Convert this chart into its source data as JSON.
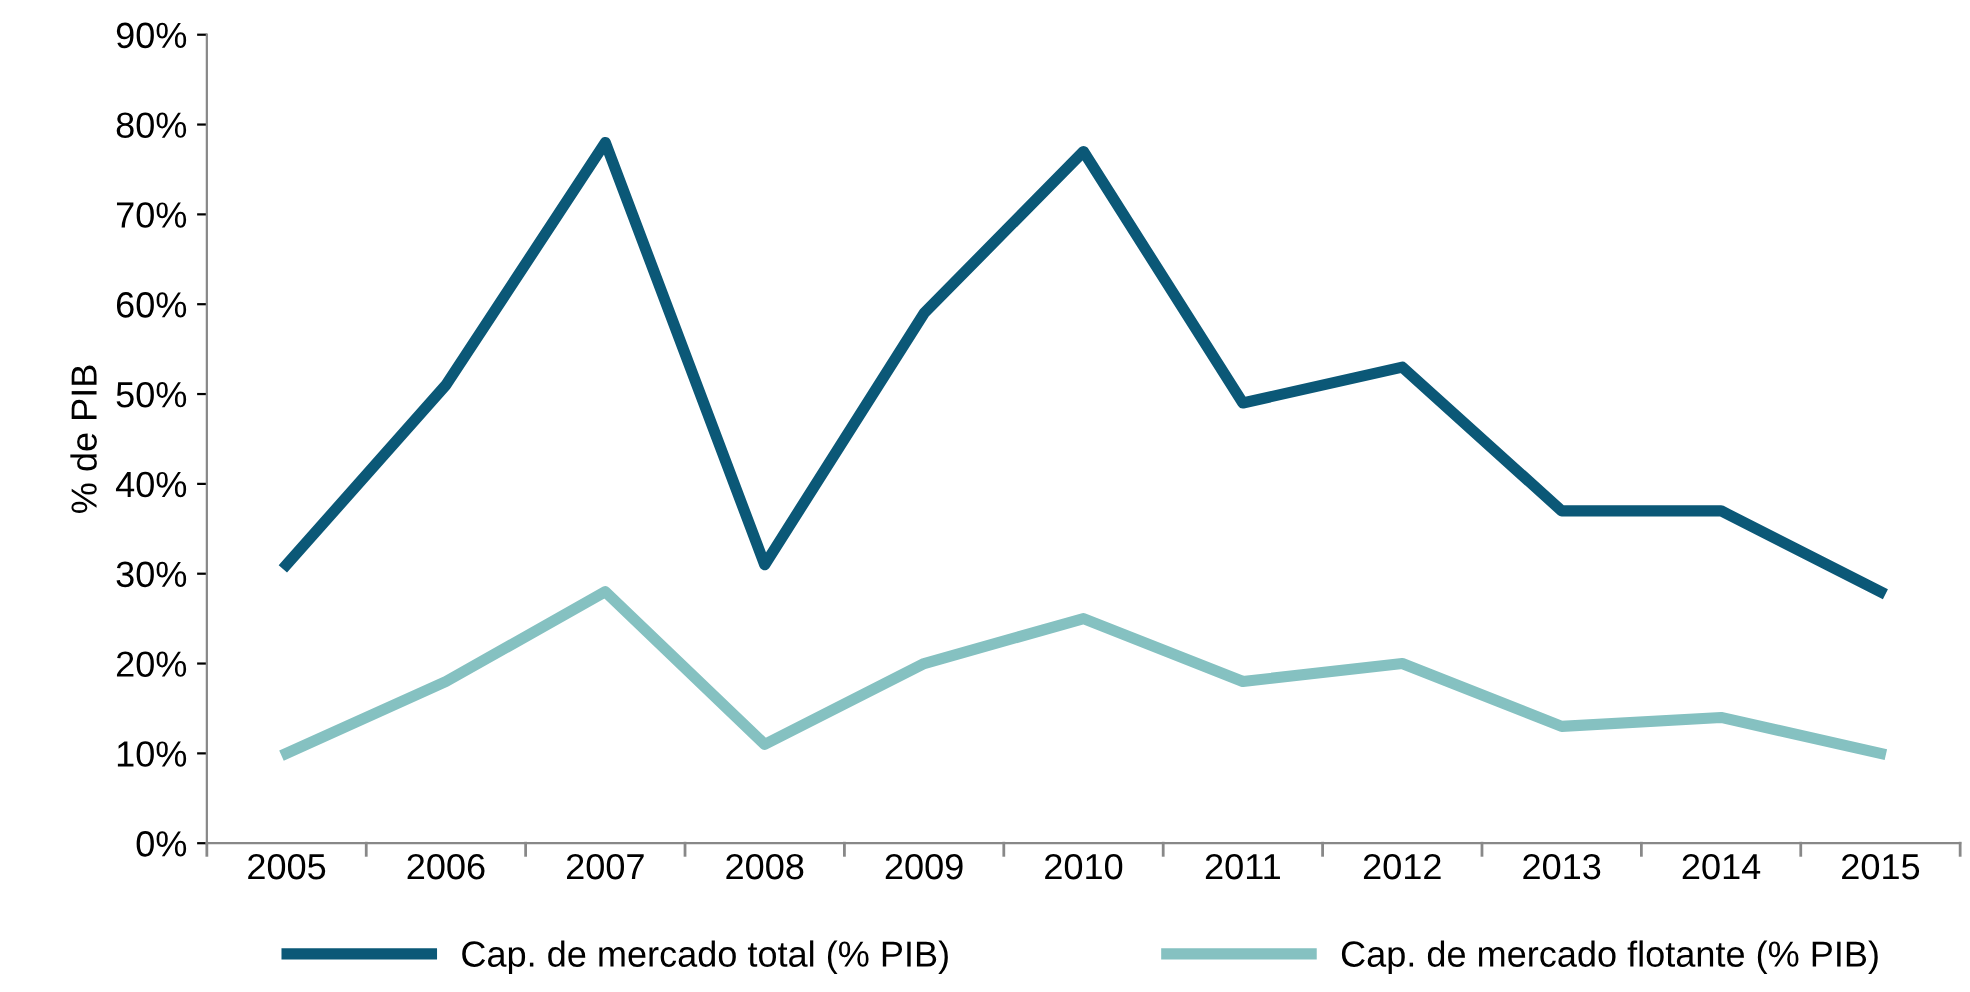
{
  "chart_data": {
    "type": "line",
    "ylabel": "% de PIB",
    "categories": [
      "2005",
      "2006",
      "2007",
      "2008",
      "2009",
      "2010",
      "2011",
      "2012",
      "2013",
      "2014",
      "2015"
    ],
    "series": [
      {
        "name": "Cap. de mercado total (% PIB)",
        "color": "#0b5877",
        "values": [
          31,
          51,
          78,
          31,
          59,
          77,
          49,
          53,
          37,
          37,
          28
        ]
      },
      {
        "name": "Cap. de mercado flotante (% PIB)",
        "color": "#85c1c1",
        "values": [
          10,
          18,
          28,
          11,
          20,
          25,
          18,
          20,
          13,
          14,
          10
        ]
      }
    ],
    "ylim": [
      0,
      90
    ],
    "yticks": [
      {
        "value": 0,
        "label": "0%"
      },
      {
        "value": 10,
        "label": "10%"
      },
      {
        "value": 20,
        "label": "20%"
      },
      {
        "value": 30,
        "label": "30%"
      },
      {
        "value": 40,
        "label": "40%"
      },
      {
        "value": 50,
        "label": "50%"
      },
      {
        "value": 60,
        "label": "60%"
      },
      {
        "value": 70,
        "label": "70%"
      },
      {
        "value": 80,
        "label": "80%"
      },
      {
        "value": 90,
        "label": "90%"
      }
    ],
    "grid": false,
    "legend": "bottom",
    "marker": "none",
    "line_style": "solid"
  }
}
